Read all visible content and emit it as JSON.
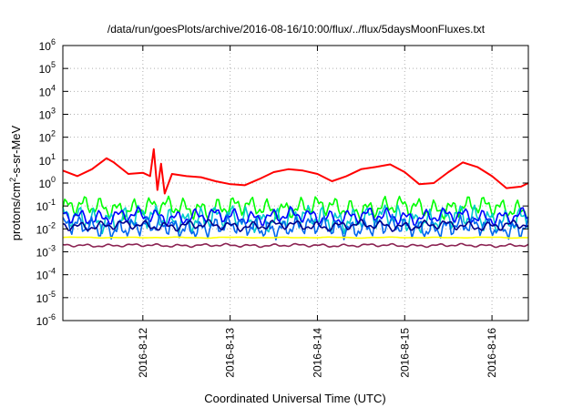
{
  "chart_data": {
    "type": "line",
    "title": "/data/run/goesPlots/archive/2016-08-16/10:00/flux/../flux/5daysMoonFluxes.txt",
    "xlabel": "Coordinated Universal Time (UTC)",
    "ylabel": {
      "prefix": "protons/cm",
      "sup": "2",
      "suffix": "-s-sr-MeV"
    },
    "y_scale": "log",
    "ylim": [
      1e-06,
      1000000.0
    ],
    "y_ticks": [
      {
        "value": 1e-06,
        "base": "10",
        "exp": "-6"
      },
      {
        "value": 1e-05,
        "base": "10",
        "exp": "-5"
      },
      {
        "value": 0.0001,
        "base": "10",
        "exp": "-4"
      },
      {
        "value": 0.001,
        "base": "10",
        "exp": "-3"
      },
      {
        "value": 0.01,
        "base": "10",
        "exp": "-2"
      },
      {
        "value": 0.1,
        "base": "10",
        "exp": "-1"
      },
      {
        "value": 1.0,
        "base": "10",
        "exp": "0"
      },
      {
        "value": 10.0,
        "base": "10",
        "exp": "1"
      },
      {
        "value": 100.0,
        "base": "10",
        "exp": "2"
      },
      {
        "value": 1000.0,
        "base": "10",
        "exp": "3"
      },
      {
        "value": 10000.0,
        "base": "10",
        "exp": "4"
      },
      {
        "value": 100000.0,
        "base": "10",
        "exp": "5"
      },
      {
        "value": 1000000.0,
        "base": "10",
        "exp": "6"
      }
    ],
    "x_range": [
      "2016-08-11 02:00",
      "2016-08-16 10:00"
    ],
    "x_ticks": [
      "2016-8-12",
      "2016-8-13",
      "2016-8-14",
      "2016-8-15",
      "2016-8-16"
    ],
    "grid": true,
    "legend": "none",
    "series": [
      {
        "color": "#ff0000",
        "points": [
          [
            "2016-08-11 02:00",
            3.5
          ],
          [
            "2016-08-11 06:00",
            2.0
          ],
          [
            "2016-08-11 10:00",
            4.0
          ],
          [
            "2016-08-11 14:00",
            12
          ],
          [
            "2016-08-11 16:00",
            8.0
          ],
          [
            "2016-08-11 20:00",
            2.5
          ],
          [
            "2016-08-12 00:00",
            2.8
          ],
          [
            "2016-08-12 02:00",
            2.0
          ],
          [
            "2016-08-12 03:00",
            30
          ],
          [
            "2016-08-12 04:00",
            0.5
          ],
          [
            "2016-08-12 05:00",
            7.0
          ],
          [
            "2016-08-12 06:00",
            0.35
          ],
          [
            "2016-08-12 08:00",
            2.5
          ],
          [
            "2016-08-12 12:00",
            2.0
          ],
          [
            "2016-08-12 16:00",
            1.8
          ],
          [
            "2016-08-12 20:00",
            1.2
          ],
          [
            "2016-08-13 00:00",
            0.9
          ],
          [
            "2016-08-13 04:00",
            0.8
          ],
          [
            "2016-08-13 08:00",
            1.5
          ],
          [
            "2016-08-13 12:00",
            3.0
          ],
          [
            "2016-08-13 16:00",
            4.0
          ],
          [
            "2016-08-13 20:00",
            3.5
          ],
          [
            "2016-08-14 00:00",
            2.5
          ],
          [
            "2016-08-14 04:00",
            1.2
          ],
          [
            "2016-08-14 08:00",
            2.0
          ],
          [
            "2016-08-14 12:00",
            4.0
          ],
          [
            "2016-08-14 16:00",
            5.0
          ],
          [
            "2016-08-14 20:00",
            6.5
          ],
          [
            "2016-08-15 00:00",
            3.0
          ],
          [
            "2016-08-15 04:00",
            0.9
          ],
          [
            "2016-08-15 08:00",
            1.0
          ],
          [
            "2016-08-15 12:00",
            3.0
          ],
          [
            "2016-08-15 16:00",
            8.0
          ],
          [
            "2016-08-15 20:00",
            5.0
          ],
          [
            "2016-08-16 00:00",
            2.0
          ],
          [
            "2016-08-16 04:00",
            0.6
          ],
          [
            "2016-08-16 08:00",
            0.7
          ],
          [
            "2016-08-16 10:00",
            1.0
          ]
        ]
      },
      {
        "color": "#00ff00",
        "base": 0.085,
        "amp": 0.45,
        "freq": 1.55,
        "phase": 0.0
      },
      {
        "color": "#00cccc",
        "base": 0.028,
        "amp": 0.55,
        "freq": 1.7,
        "phase": 1.3
      },
      {
        "color": "#0000ff",
        "base": 0.035,
        "amp": 0.35,
        "freq": 1.35,
        "phase": 2.1
      },
      {
        "color": "#0066ee",
        "base": 0.012,
        "amp": 0.45,
        "freq": 1.9,
        "phase": 0.7
      },
      {
        "color": "#00008b",
        "base": 0.014,
        "amp": 0.22,
        "freq": 1.2,
        "phase": 2.9
      },
      {
        "color": "#ffff00",
        "base": 0.0042,
        "amp": 0.02,
        "freq": 0.5,
        "phase": 0.0
      },
      {
        "color": "#8b2252",
        "base": 0.0019,
        "amp": 0.07,
        "freq": 1.1,
        "phase": 1.8
      }
    ]
  }
}
